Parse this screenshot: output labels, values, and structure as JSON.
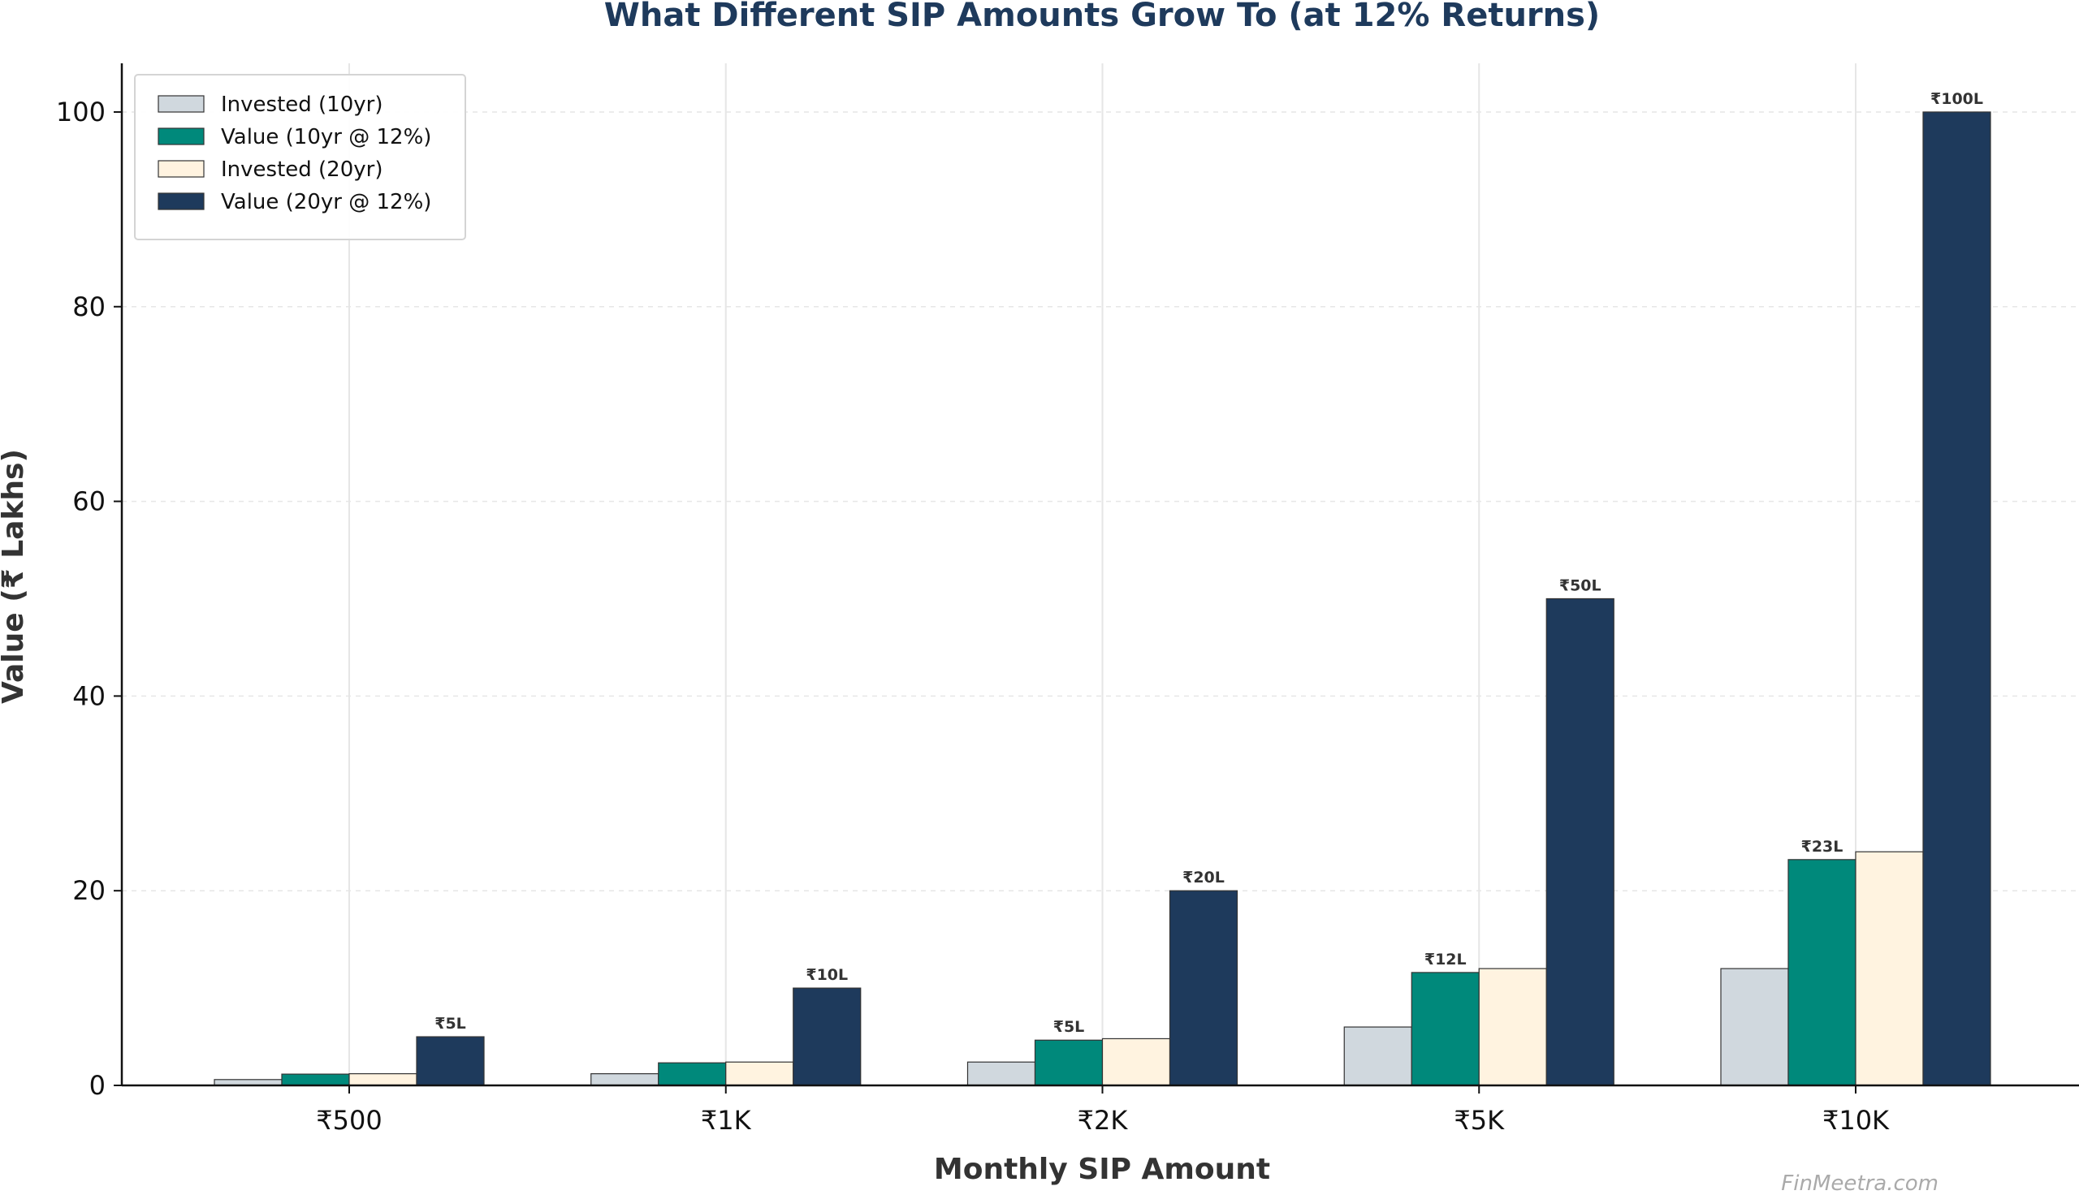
{
  "chart_data": {
    "type": "bar",
    "title": "What Different SIP Amounts Grow To (at 12% Returns)",
    "xlabel": "Monthly SIP Amount",
    "ylabel": "Value (₹ Lakhs)",
    "categories": [
      "₹500",
      "₹1K",
      "₹2K",
      "₹5K",
      "₹10K"
    ],
    "ylim": [
      0,
      105
    ],
    "yticks": [
      0,
      20,
      40,
      60,
      80,
      100
    ],
    "grid": true,
    "legend_position": "top-left",
    "series": [
      {
        "name": "Invested (10yr)",
        "color": "#d0d8de",
        "values": [
          0.6,
          1.2,
          2.4,
          6,
          12
        ],
        "labels": [
          "",
          "",
          "",
          "",
          ""
        ]
      },
      {
        "name": "Value (10yr @ 12%)",
        "color": "#00897b",
        "values": [
          1.16,
          2.32,
          4.65,
          11.6,
          23.2
        ],
        "labels": [
          "",
          "",
          "₹5L",
          "₹12L",
          "₹23L"
        ]
      },
      {
        "name": "Invested (20yr)",
        "color": "#fff3e0",
        "values": [
          1.2,
          2.4,
          4.8,
          12,
          24
        ],
        "labels": [
          "",
          "",
          "",
          "",
          ""
        ]
      },
      {
        "name": "Value (20yr @ 12%)",
        "color": "#1e3a5c",
        "values": [
          5,
          10,
          20,
          50,
          100
        ],
        "labels": [
          "₹5L",
          "₹10L",
          "₹20L",
          "₹50L",
          "₹100L"
        ]
      }
    ],
    "watermark": "FinMeetra.com"
  }
}
